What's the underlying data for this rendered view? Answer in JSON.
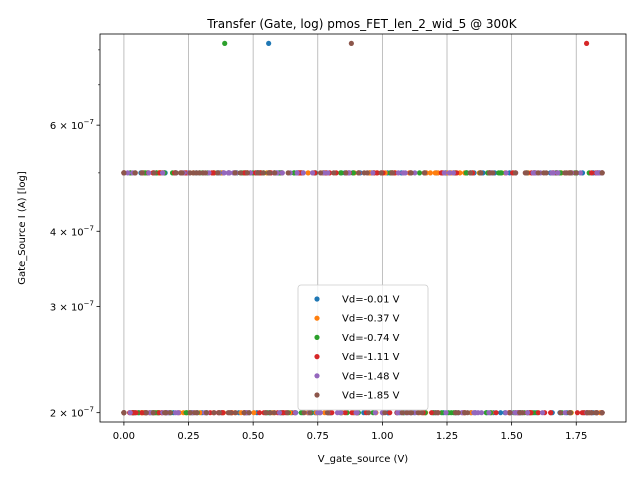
{
  "chart_data": {
    "type": "scatter",
    "title": "Transfer (Gate, log) pmos_FET_len_2_wid_5 @ 300K",
    "xlabel": "V_gate_source (V)",
    "ylabel": "Gate_Source I (A) [log]",
    "xlim": [
      -0.0925,
      1.9425
    ],
    "ylim": [
      1.93e-07,
      8.5e-07
    ],
    "yscale": "log",
    "grid": "x-major",
    "legend_position": "bottom-center",
    "x_ticks": [
      {
        "value": 0.0,
        "label": "0.00"
      },
      {
        "value": 0.25,
        "label": "0.25"
      },
      {
        "value": 0.5,
        "label": "0.50"
      },
      {
        "value": 0.75,
        "label": "0.75"
      },
      {
        "value": 1.0,
        "label": "1.00"
      },
      {
        "value": 1.25,
        "label": "1.25"
      },
      {
        "value": 1.5,
        "label": "1.50"
      },
      {
        "value": 1.75,
        "label": "1.75"
      }
    ],
    "y_ticks": [
      {
        "value": 2e-07,
        "mantissa": "2",
        "exp": "−7"
      },
      {
        "value": 3e-07,
        "mantissa": "3",
        "exp": "−7"
      },
      {
        "value": 4e-07,
        "mantissa": "4",
        "exp": "−7"
      },
      {
        "value": 6e-07,
        "mantissa": "6",
        "exp": "−7"
      }
    ],
    "y_minor_ticks": [
      5e-07,
      7e-07,
      8e-07
    ],
    "levels": [
      2e-07,
      5e-07
    ],
    "x_range": [
      0.0,
      1.85
    ],
    "series": [
      {
        "name": "Vd=-0.01 V",
        "color": "#1f77b4",
        "outliers": [
          0.56
        ],
        "seed": 11
      },
      {
        "name": "Vd=-0.37 V",
        "color": "#ff7f0e",
        "outliers": [],
        "seed": 23
      },
      {
        "name": "Vd=-0.74 V",
        "color": "#2ca02c",
        "outliers": [
          0.39
        ],
        "seed": 37
      },
      {
        "name": "Vd=-1.11 V",
        "color": "#d62728",
        "outliers": [
          1.79
        ],
        "seed": 41
      },
      {
        "name": "Vd=-1.48 V",
        "color": "#9467bd",
        "outliers": [],
        "seed": 53
      },
      {
        "name": "Vd=-1.85 V",
        "color": "#8c564b",
        "outliers": [
          0.88
        ],
        "seed": 67
      }
    ],
    "outlier_value": 8.2e-07
  }
}
